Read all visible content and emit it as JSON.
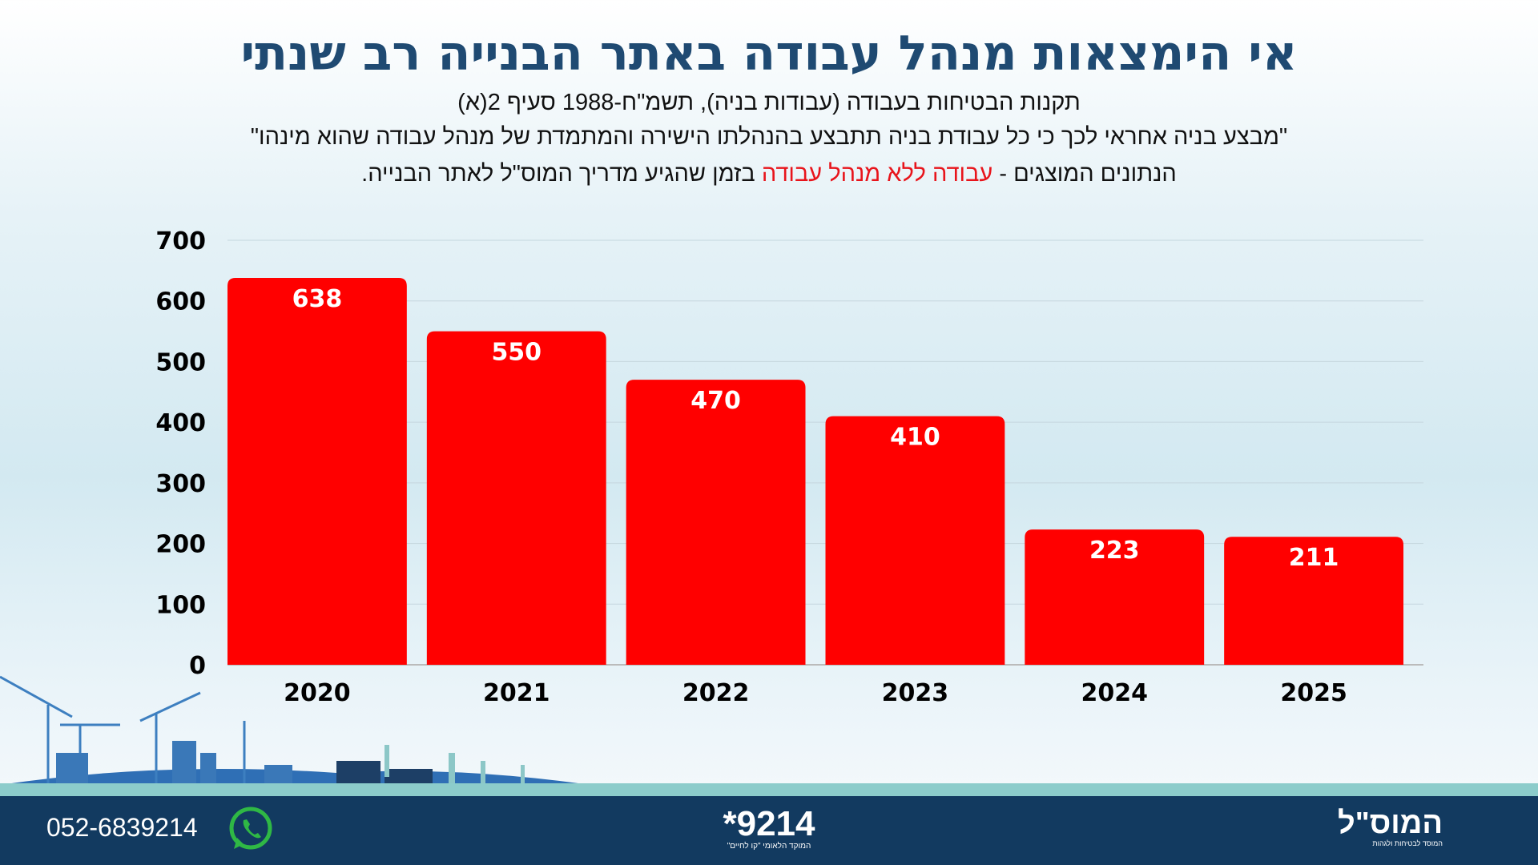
{
  "header": {
    "title": "אי הימצאות מנהל עבודה באתר הבנייה רב שנתי",
    "line1": "תקנות הבטיחות בעבודה (עבודות בניה), תשמ\"ח-1988 סעיף 2(א)",
    "line2": "\"מבצע בניה אחראי לכך כי כל עבודת בניה תתבצע בהנהלתו הישירה והמתמדת של מנהל עבודה שהוא מינהו\"",
    "line3_pre": "הנתונים המוצגים - ",
    "line3_red": "עבודה ללא מנהל עבודה",
    "line3_post": " בזמן שהגיע מדריך המוס\"ל לאתר הבנייה."
  },
  "chart_data": {
    "type": "bar",
    "categories": [
      "2020",
      "2021",
      "2022",
      "2023",
      "2024",
      "2025"
    ],
    "values": [
      638,
      550,
      470,
      410,
      223,
      211
    ],
    "ylim": [
      0,
      700
    ],
    "yticks": [
      "0",
      "100",
      "200",
      "300",
      "400",
      "500",
      "600",
      "700"
    ],
    "grid": true,
    "bar_color": "#ff0000",
    "title": "",
    "xlabel": "",
    "ylabel": ""
  },
  "footer": {
    "phone": "052-6839214",
    "phone_icon": "whatsapp-icon",
    "hotline": "*9214",
    "hotline_sub": "המוקד הלאומי \"קו לחיים\"",
    "logo_name": "המוס\"ל",
    "logo_sub": "המוסד לבטיחות ולגהות"
  },
  "colors": {
    "title": "#1f4a72",
    "footer": "#123a60",
    "accent_red": "#e8141b"
  }
}
